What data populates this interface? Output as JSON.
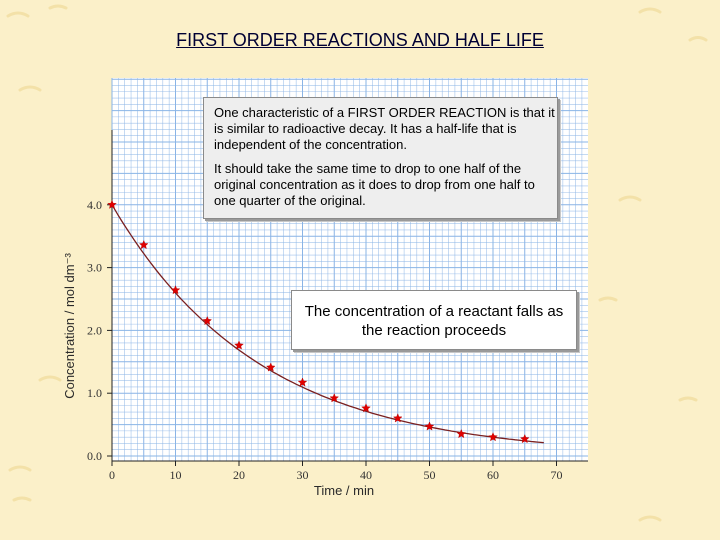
{
  "page": {
    "title": "FIRST ORDER REACTIONS AND HALF LIFE",
    "colors": {
      "background": "#fbf0c9",
      "grid": "#8ab4e6",
      "curve": "#7a2020",
      "marker": "#e00000",
      "title": "#000033"
    }
  },
  "notes": {
    "characteristic_p1": "One characteristic of a FIRST ORDER REACTION is that it is similar to radioactive decay.  It has a half-life that is independent of the concentration.",
    "characteristic_p2": "It should take the same time to drop to one half of the original concentration as it does to drop from one half to one quarter of the original.",
    "falls": "The concentration of a reactant falls as the reaction proceeds"
  },
  "chart_data": {
    "type": "scatter",
    "title": "",
    "xlabel": "Time / min",
    "ylabel": "Concentration / mol dm⁻³",
    "xlim": [
      0,
      70
    ],
    "ylim": [
      0,
      4.0
    ],
    "x_ticks": [
      "0",
      "10",
      "20",
      "30",
      "40",
      "50",
      "60",
      "70"
    ],
    "y_ticks": [
      "0.0",
      "1.0",
      "2.0",
      "3.0",
      "4.0"
    ],
    "grid": true,
    "series": [
      {
        "x": [
          0,
          5,
          10,
          15,
          20,
          25,
          30,
          35,
          40,
          45,
          50,
          55,
          60,
          65
        ],
        "y": [
          4.0,
          3.36,
          2.64,
          2.15,
          1.76,
          1.41,
          1.17,
          0.92,
          0.76,
          0.6,
          0.47,
          0.35,
          0.3,
          0.27
        ]
      }
    ],
    "fit_curve": {
      "label": "",
      "shape": "exponential decay",
      "x_end": 68
    }
  }
}
